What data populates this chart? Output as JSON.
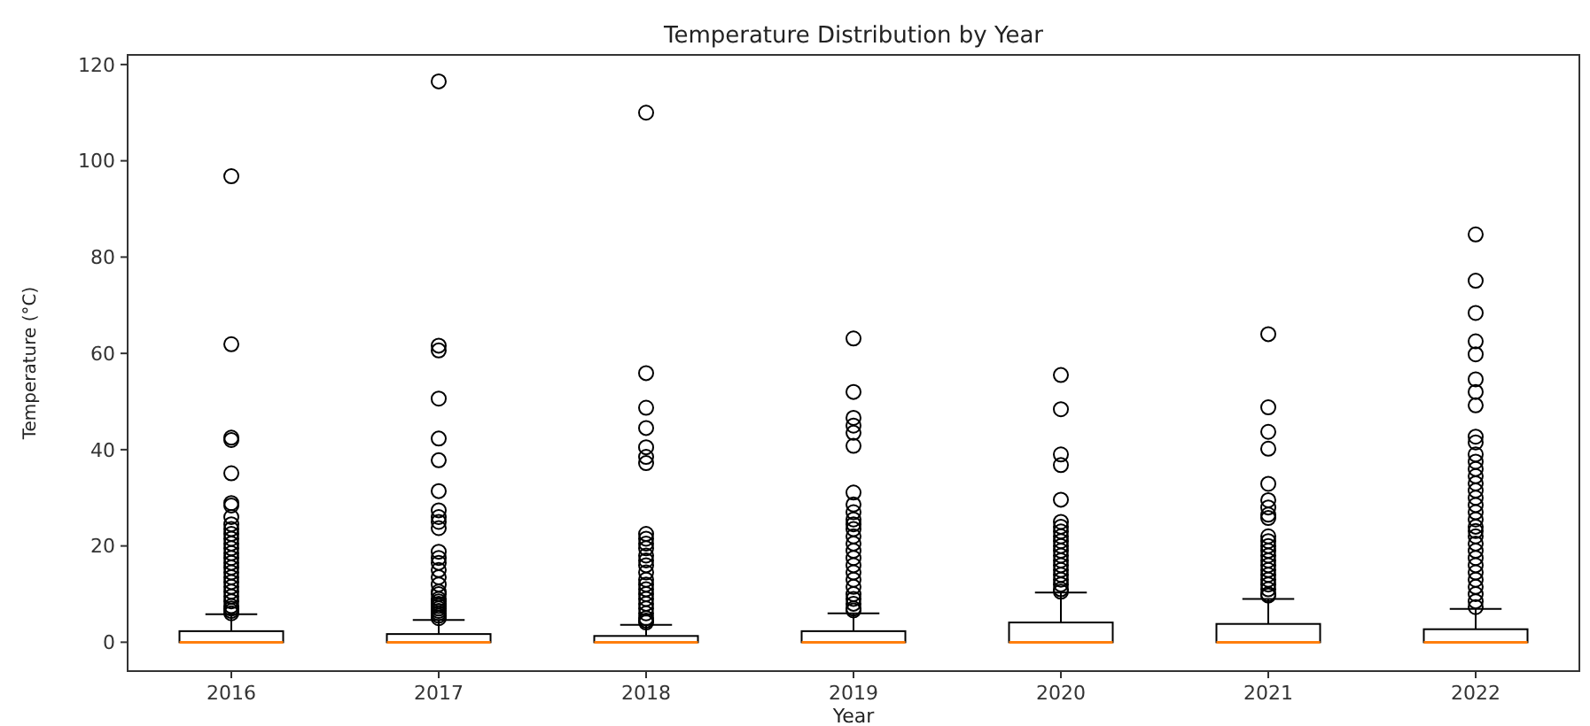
{
  "chart_data": {
    "type": "box",
    "title": "Temperature Distribution by Year",
    "xlabel": "Year",
    "ylabel": "Temperature (°C)",
    "categories": [
      "2016",
      "2017",
      "2018",
      "2019",
      "2020",
      "2021",
      "2022"
    ],
    "ylim": [
      -6,
      122
    ],
    "yticks": [
      0,
      20,
      40,
      60,
      80,
      100,
      120
    ],
    "grid": false,
    "marker": "circle",
    "color": "#000000",
    "boxes": [
      {
        "low": 0,
        "q1": 0,
        "median": 0,
        "q3": 2.3,
        "high": 5.8,
        "outliers": [
          96.8,
          61.9,
          42.5,
          42,
          35.1,
          28.9,
          28.4,
          26,
          24.5,
          23.5,
          22.5,
          21.5,
          20.5,
          19.5,
          18.5,
          17.5,
          16.5,
          15.5,
          14.5,
          13.5,
          12.5,
          11.5,
          10.5,
          9.5,
          8.5,
          7.5,
          7,
          6.5,
          6
        ]
      },
      {
        "low": 0,
        "q1": 0,
        "median": 0,
        "q3": 1.7,
        "high": 4.6,
        "outliers": [
          116.5,
          61.6,
          60.6,
          50.6,
          42.3,
          37.8,
          31.4,
          27.4,
          26,
          25,
          23.7,
          18.8,
          17.5,
          16.5,
          15,
          13.5,
          12,
          10.5,
          10,
          9,
          8.5,
          8,
          7.5,
          7,
          6.5,
          6,
          5.5,
          5
        ]
      },
      {
        "low": 0,
        "q1": 0,
        "median": 0,
        "q3": 1.3,
        "high": 3.6,
        "outliers": [
          110,
          55.9,
          48.7,
          44.5,
          40.5,
          38.5,
          37.2,
          22.5,
          21.5,
          20.5,
          19.5,
          18,
          17,
          16,
          14.5,
          13,
          12,
          11,
          10,
          9,
          8,
          7,
          6,
          5,
          4.5,
          4.1
        ]
      },
      {
        "low": 0,
        "q1": 0,
        "median": 0,
        "q3": 2.3,
        "high": 6,
        "outliers": [
          63.1,
          52,
          46.6,
          45,
          43.5,
          40.8,
          31.1,
          28.6,
          27,
          25.5,
          24.5,
          23.5,
          22,
          20.5,
          19,
          17.5,
          16,
          14.5,
          13,
          11.5,
          10,
          9,
          8,
          7,
          6.6
        ]
      },
      {
        "low": 0,
        "q1": 0,
        "median": 0,
        "q3": 4.1,
        "high": 10.3,
        "outliers": [
          55.5,
          48.4,
          39,
          36.8,
          29.6,
          25,
          24,
          23,
          22,
          21,
          20,
          19,
          18,
          17,
          16,
          15,
          14,
          13,
          12,
          11,
          10.5
        ]
      },
      {
        "low": 0,
        "q1": 0,
        "median": 0,
        "q3": 3.8,
        "high": 9,
        "outliers": [
          64,
          48.8,
          43.7,
          40.2,
          32.9,
          29.5,
          28,
          26.5,
          25.8,
          22,
          21,
          20,
          19,
          18,
          17,
          16,
          15,
          14,
          13,
          12,
          11,
          10,
          9.7
        ]
      },
      {
        "low": 0,
        "q1": 0,
        "median": 0,
        "q3": 2.7,
        "high": 6.9,
        "outliers": [
          84.7,
          75.1,
          68.4,
          62.5,
          59.8,
          54.6,
          52,
          49.2,
          42.7,
          41.5,
          39,
          37.5,
          36,
          34.5,
          33,
          31.5,
          30,
          28.5,
          27,
          25.5,
          24,
          23.1,
          22,
          20.5,
          19,
          17.5,
          16,
          14.5,
          13,
          11.5,
          10,
          8.5,
          7.3
        ]
      }
    ]
  }
}
